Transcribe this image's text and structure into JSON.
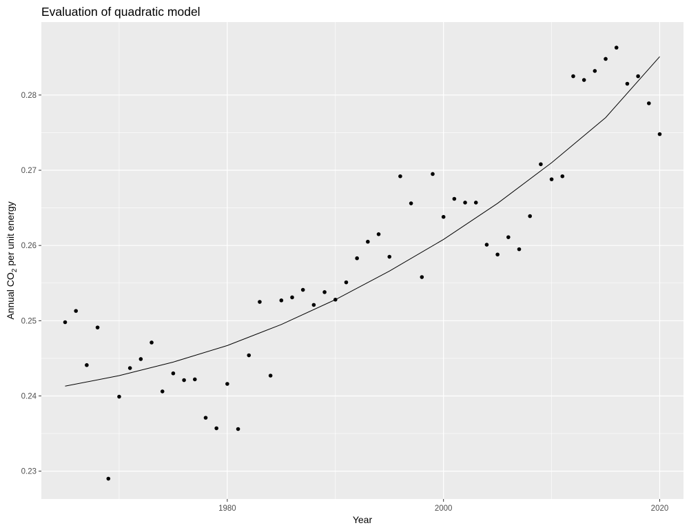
{
  "chart_data": {
    "type": "scatter",
    "title": "Evaluation of quadratic model",
    "xlabel": "Year",
    "ylabel_prefix": "Annual CO",
    "ylabel_subscript": "2",
    "ylabel_suffix": " per unit energy",
    "xlim": [
      1962.8,
      2022.2
    ],
    "ylim": [
      0.2263,
      0.2897
    ],
    "x_ticks": [
      1980,
      2000,
      2020
    ],
    "x_tick_labels": [
      "1980",
      "2000",
      "2020"
    ],
    "y_ticks": [
      0.23,
      0.24,
      0.25,
      0.26,
      0.27,
      0.28
    ],
    "y_tick_labels": [
      "0.23",
      "0.24",
      "0.25",
      "0.26",
      "0.27",
      "0.28"
    ],
    "grid": true,
    "points": {
      "x": [
        1965,
        1966,
        1967,
        1968,
        1969,
        1970,
        1971,
        1972,
        1973,
        1974,
        1975,
        1976,
        1977,
        1978,
        1979,
        1980,
        1981,
        1982,
        1983,
        1984,
        1985,
        1986,
        1987,
        1988,
        1989,
        1990,
        1991,
        1992,
        1993,
        1994,
        1995,
        1996,
        1997,
        1998,
        1999,
        2000,
        2001,
        2002,
        2003,
        2004,
        2005,
        2006,
        2007,
        2008,
        2009,
        2010,
        2011,
        2012,
        2013,
        2014,
        2015,
        2016,
        2017,
        2018,
        2019,
        2020
      ],
      "y": [
        0.2498,
        0.2513,
        0.2441,
        0.2491,
        0.229,
        0.2399,
        0.2437,
        0.2449,
        0.2471,
        0.2406,
        0.243,
        0.2421,
        0.2422,
        0.2371,
        0.2357,
        0.2416,
        0.2356,
        0.2454,
        0.2525,
        0.2427,
        0.2527,
        0.2531,
        0.2541,
        0.2521,
        0.2538,
        0.2528,
        0.2551,
        0.2583,
        0.2605,
        0.2615,
        0.2585,
        0.2692,
        0.2656,
        0.2558,
        0.2695,
        0.2638,
        0.2662,
        0.2657,
        0.2657,
        0.2601,
        0.2588,
        0.2611,
        0.2595,
        0.2639,
        0.2708,
        0.2688,
        0.2692,
        0.2825,
        0.282,
        0.2832,
        0.2848,
        0.2863,
        0.2815,
        0.2825,
        0.2789,
        0.2748
      ]
    },
    "fit_line": {
      "x": [
        1965,
        1970,
        1975,
        1980,
        1985,
        1990,
        1995,
        2000,
        2005,
        2010,
        2015,
        2020
      ],
      "y": [
        0.2413,
        0.2427,
        0.2445,
        0.2467,
        0.2495,
        0.2528,
        0.2566,
        0.2608,
        0.2656,
        0.271,
        0.277,
        0.2851
      ]
    },
    "colors": {
      "panel_background": "#EBEBEB",
      "grid": "#FFFFFF",
      "points": "#000000",
      "line": "#000000"
    }
  }
}
